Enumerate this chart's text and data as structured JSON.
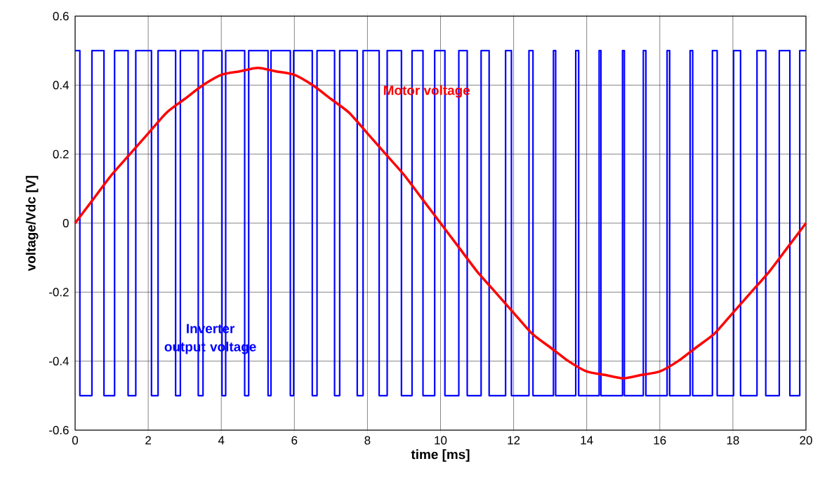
{
  "chart_data": {
    "type": "line",
    "xlabel": "time [ms]",
    "ylabel": "voltage/Vdc [V]",
    "xlim": [
      0,
      20
    ],
    "ylim": [
      -0.6,
      0.6
    ],
    "xticks": [
      0,
      2,
      4,
      6,
      8,
      10,
      12,
      14,
      16,
      18,
      20
    ],
    "yticks": [
      -0.6,
      -0.4,
      -0.2,
      0,
      0.2,
      0.4,
      0.6
    ],
    "grid": true,
    "series": [
      {
        "name": "Inverter output voltage",
        "type": "step",
        "color": "#0000ff",
        "x": [
          0,
          0.13,
          0.46,
          0.79,
          1.08,
          1.45,
          1.66,
          2.09,
          2.27,
          2.75,
          2.88,
          3.37,
          3.5,
          4.02,
          4.12,
          4.64,
          4.75,
          5.28,
          5.36,
          5.89,
          5.98,
          6.49,
          6.62,
          7.1,
          7.24,
          7.72,
          7.88,
          8.32,
          8.54,
          8.93,
          9.22,
          9.52,
          9.84,
          10.12,
          10.5,
          10.73,
          11.11,
          11.33,
          11.78,
          11.94,
          12.42,
          12.53,
          13.09,
          13.15,
          13.7,
          13.78,
          14.34,
          14.39,
          14.98,
          15.03,
          15.55,
          15.62,
          16.2,
          16.27,
          16.83,
          16.9,
          17.44,
          17.57,
          18.02,
          18.21,
          18.66,
          18.9,
          19.27,
          19.56,
          19.83,
          20
        ],
        "values": [
          0.5,
          -0.5,
          0.5,
          -0.5,
          0.5,
          -0.5,
          0.5,
          -0.5,
          0.5,
          -0.5,
          0.5,
          -0.5,
          0.5,
          -0.5,
          0.5,
          -0.5,
          0.5,
          -0.5,
          0.5,
          -0.5,
          0.5,
          -0.5,
          0.5,
          -0.5,
          0.5,
          -0.5,
          0.5,
          -0.5,
          0.5,
          -0.5,
          0.5,
          -0.5,
          0.5,
          -0.5,
          0.5,
          -0.5,
          0.5,
          -0.5,
          0.5,
          -0.5,
          0.5,
          -0.5,
          0.5,
          -0.5,
          0.5,
          -0.5,
          0.5,
          -0.5,
          0.5,
          -0.5,
          0.5,
          -0.5,
          0.5,
          -0.5,
          0.5,
          -0.5,
          0.5,
          -0.5,
          0.5,
          -0.5,
          0.5,
          -0.5,
          0.5,
          -0.5,
          0.5,
          0.5
        ]
      },
      {
        "name": "Motor voltage",
        "type": "line",
        "color": "#ff0000",
        "x": [
          0,
          0.5,
          1,
          1.5,
          2,
          2.5,
          3,
          3.5,
          4,
          4.5,
          5,
          5.5,
          6,
          6.5,
          7,
          7.5,
          8,
          8.5,
          9,
          9.5,
          10,
          10.5,
          11,
          11.5,
          12,
          12.5,
          13,
          13.5,
          14,
          14.5,
          15,
          15.5,
          16,
          16.5,
          17,
          17.5,
          18,
          18.5,
          19,
          19.5,
          20
        ],
        "values": [
          0,
          0.07,
          0.14,
          0.2,
          0.26,
          0.32,
          0.36,
          0.4,
          0.43,
          0.44,
          0.45,
          0.44,
          0.43,
          0.4,
          0.36,
          0.32,
          0.26,
          0.2,
          0.14,
          0.07,
          0,
          -0.07,
          -0.14,
          -0.2,
          -0.26,
          -0.32,
          -0.36,
          -0.4,
          -0.43,
          -0.44,
          -0.45,
          -0.44,
          -0.43,
          -0.4,
          -0.36,
          -0.32,
          -0.26,
          -0.2,
          -0.14,
          -0.07,
          0
        ]
      }
    ]
  }
}
